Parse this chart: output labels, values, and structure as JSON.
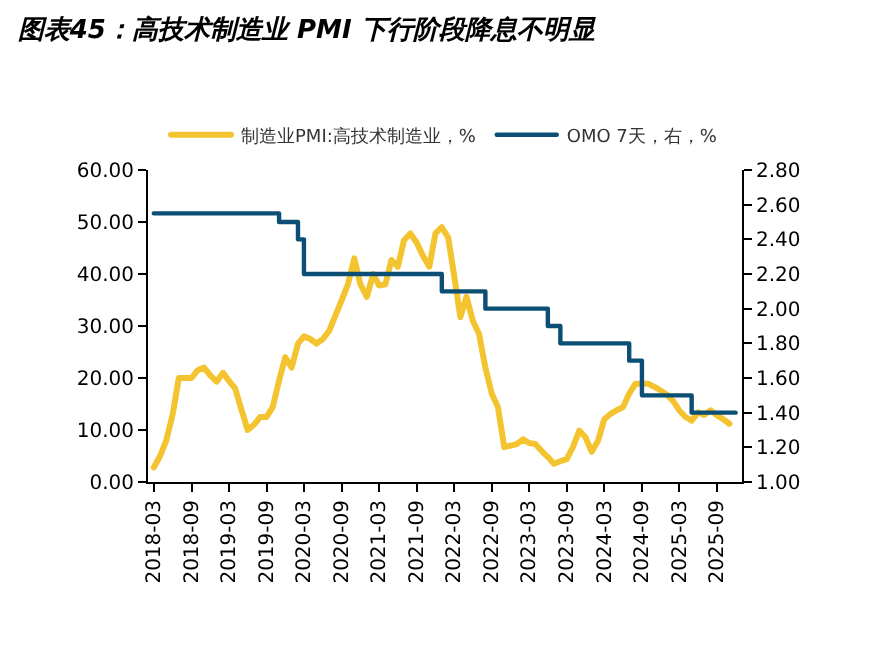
{
  "chart_data": {
    "type": "line",
    "title": "图表45：高技术制造业 PMI 下行阶段降息不明显",
    "series": [
      {
        "name": "制造业PMI:高技术制造业，%",
        "color": "#f4c430",
        "x": [
          "2018-03",
          "2018-04",
          "2018-05",
          "2018-06",
          "2018-07",
          "2018-08",
          "2018-09",
          "2018-10",
          "2018-11",
          "2018-12",
          "2019-01",
          "2019-02",
          "2019-03",
          "2019-04",
          "2019-05",
          "2019-06",
          "2019-07",
          "2019-08",
          "2019-09",
          "2019-10",
          "2019-11",
          "2019-12",
          "2020-01",
          "2020-02",
          "2020-03",
          "2020-04",
          "2020-05",
          "2020-06",
          "2020-07",
          "2020-08",
          "2020-09",
          "2020-10",
          "2020-11",
          "2020-12",
          "2021-01",
          "2021-02",
          "2021-03",
          "2021-04",
          "2021-05",
          "2021-06",
          "2021-07",
          "2021-08",
          "2021-09",
          "2021-10",
          "2021-11",
          "2021-12",
          "2022-01",
          "2022-02",
          "2022-03",
          "2022-04",
          "2022-05",
          "2022-06",
          "2022-07",
          "2022-08",
          "2022-09",
          "2022-10",
          "2022-11",
          "2022-12",
          "2023-01",
          "2023-02",
          "2023-03",
          "2023-04",
          "2023-05",
          "2023-06",
          "2023-07",
          "2023-08",
          "2023-09",
          "2023-10",
          "2023-11",
          "2023-12",
          "2024-01",
          "2024-02",
          "2024-03",
          "2024-04",
          "2024-05",
          "2024-06",
          "2024-07",
          "2024-08",
          "2024-09",
          "2024-10",
          "2024-11",
          "2024-12",
          "2025-01",
          "2025-02",
          "2025-03",
          "2025-04",
          "2025-05",
          "2025-06",
          "2025-07",
          "2025-08",
          "2025-09",
          "2025-10",
          "2025-11"
        ],
        "values": [
          2.8,
          5,
          8,
          13,
          20,
          20,
          20,
          21.5,
          22,
          20.5,
          19.3,
          21,
          19.5,
          18,
          14,
          10,
          11,
          12.5,
          12.5,
          14.4,
          19.5,
          24,
          22,
          26.6,
          28,
          27.5,
          26.6,
          27.5,
          29,
          32,
          35,
          38,
          43,
          38,
          35.6,
          40,
          37.8,
          38,
          42.7,
          41.4,
          46.5,
          47.8,
          46,
          43.5,
          41.4,
          47.8,
          49,
          47,
          40,
          31.7,
          35.6,
          31,
          28.5,
          22,
          17,
          14.4,
          6.7,
          7,
          7.3,
          8.2,
          7.5,
          7.3,
          6,
          4.8,
          3.5,
          4,
          4.4,
          6.7,
          9.9,
          8.6,
          5.8,
          8,
          12,
          13.1,
          13.8,
          14.4,
          17,
          18.9,
          18.9,
          18.9,
          18.3,
          17.6,
          16.8,
          15.5,
          13.8,
          12.5,
          11.8,
          13.4,
          12.9,
          13.8,
          12.8,
          12.1,
          11.2
        ]
      },
      {
        "name": "OMO 7天，右，%",
        "color": "#0b4f75",
        "type": "step",
        "axis": "y2",
        "x": [
          "2018-03",
          "2019-11",
          "2020-02",
          "2020-03",
          "2022-01",
          "2022-08",
          "2023-06",
          "2023-08",
          "2024-07",
          "2024-09",
          "2025-05",
          "2025-12"
        ],
        "values": [
          2.55,
          2.5,
          2.4,
          2.2,
          2.1,
          2.0,
          1.9,
          1.8,
          1.7,
          1.5,
          1.4,
          1.4
        ]
      }
    ],
    "xlim": [
      "2018-02",
      "2026-01"
    ],
    "xticks": [
      "2018-03",
      "2018-09",
      "2019-03",
      "2019-09",
      "2020-03",
      "2020-09",
      "2021-03",
      "2021-09",
      "2022-03",
      "2022-09",
      "2023-03",
      "2023-09",
      "2024-03",
      "2024-09",
      "2025-03",
      "2025-09"
    ],
    "ylim": [
      0,
      60
    ],
    "yticks": [
      {
        "value": 0,
        "label": "0.00"
      },
      {
        "value": 10,
        "label": "10.00"
      },
      {
        "value": 20,
        "label": "20.00"
      },
      {
        "value": 30,
        "label": "30.00"
      },
      {
        "value": 40,
        "label": "40.00"
      },
      {
        "value": 50,
        "label": "50.00"
      },
      {
        "value": 60,
        "label": "60.00"
      }
    ],
    "y2lim": [
      1.0,
      2.8
    ],
    "y2ticks": [
      {
        "value": 1.0,
        "label": "1.00"
      },
      {
        "value": 1.2,
        "label": "1.20"
      },
      {
        "value": 1.4,
        "label": "1.40"
      },
      {
        "value": 1.6,
        "label": "1.60"
      },
      {
        "value": 1.8,
        "label": "1.80"
      },
      {
        "value": 2.0,
        "label": "2.00"
      },
      {
        "value": 2.2,
        "label": "2.20"
      },
      {
        "value": 2.4,
        "label": "2.40"
      },
      {
        "value": 2.6,
        "label": "2.60"
      },
      {
        "value": 2.8,
        "label": "2.80"
      }
    ],
    "legend": "top",
    "marker": "none",
    "line_style": "solid"
  }
}
